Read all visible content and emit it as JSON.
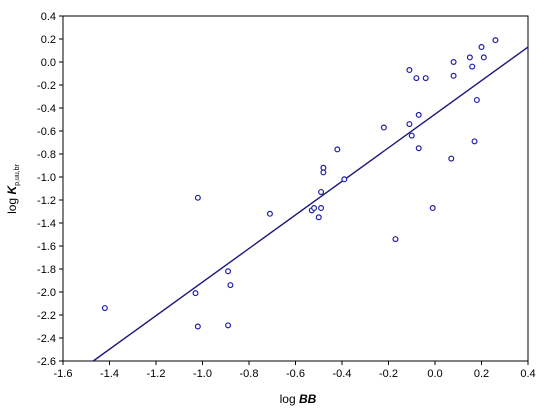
{
  "chart_data": {
    "type": "scatter",
    "title": "",
    "xlabel": {
      "prefix": "log ",
      "variable": "BB"
    },
    "ylabel": {
      "prefix": "log ",
      "variable": "K",
      "subscript": "p,uu,br"
    },
    "xlim": [
      -1.6,
      0.4
    ],
    "ylim": [
      -2.6,
      0.4
    ],
    "xticks": [
      -1.6,
      -1.4,
      -1.2,
      -1.0,
      -0.8,
      -0.6,
      -0.4,
      -0.2,
      0.0,
      0.2,
      0.4
    ],
    "yticks": [
      -2.6,
      -2.4,
      -2.2,
      -2.0,
      -1.8,
      -1.6,
      -1.4,
      -1.2,
      -1.0,
      -0.8,
      -0.6,
      -0.4,
      -0.2,
      0.0,
      0.2,
      0.4
    ],
    "xtick_labels": [
      "-1.6",
      "-1.4",
      "-1.2",
      "-1.0",
      "-0.8",
      "-0.6",
      "-0.4",
      "-0.2",
      "0.0",
      "0.2",
      "0.4"
    ],
    "ytick_labels": [
      "-2.6",
      "-2.4",
      "-2.2",
      "-2.0",
      "-1.8",
      "-1.6",
      "-1.4",
      "-1.2",
      "-1.0",
      "-0.8",
      "-0.6",
      "-0.4",
      "-0.2",
      "0.0",
      "0.2",
      "0.4"
    ],
    "grid": false,
    "marker_color": "#1f1fa8",
    "line_color": "#1a1a7a",
    "points": {
      "x": [
        -1.42,
        -1.03,
        -1.02,
        -1.02,
        -0.89,
        -0.89,
        -0.88,
        -0.71,
        -0.53,
        -0.52,
        -0.5,
        -0.49,
        -0.49,
        -0.48,
        -0.48,
        -0.42,
        -0.39,
        -0.22,
        -0.17,
        -0.11,
        -0.11,
        -0.1,
        -0.08,
        -0.07,
        -0.07,
        -0.04,
        -0.01,
        0.07,
        0.08,
        0.08,
        0.15,
        0.16,
        0.17,
        0.18,
        0.2,
        0.21,
        0.26
      ],
      "y": [
        -2.14,
        -2.01,
        -1.18,
        -2.3,
        -1.82,
        -2.29,
        -1.94,
        -1.32,
        -1.29,
        -1.27,
        -1.35,
        -1.13,
        -1.27,
        -0.92,
        -0.96,
        -0.76,
        -1.02,
        -0.57,
        -1.54,
        -0.54,
        -0.07,
        -0.64,
        -0.14,
        -0.46,
        -0.75,
        -0.14,
        -1.27,
        -0.84,
        -0.12,
        0.0,
        0.04,
        -0.04,
        -0.69,
        -0.33,
        0.13,
        0.04,
        0.19
      ]
    },
    "fit_line": {
      "x": [
        -1.47,
        0.4
      ],
      "y": [
        -2.6,
        0.13
      ]
    }
  }
}
